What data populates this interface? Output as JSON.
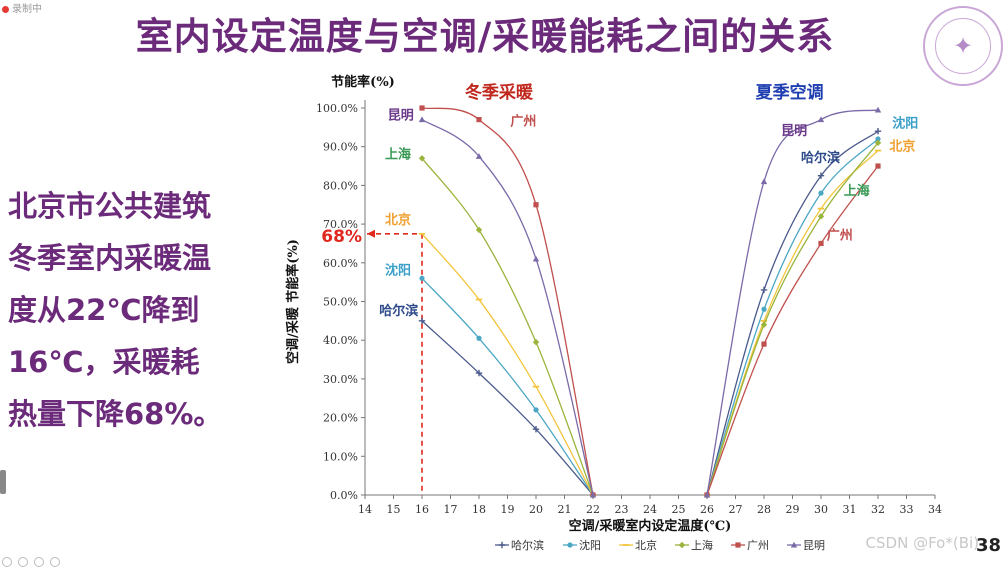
{
  "slide": {
    "title": "室内设定温度与空调/采暖能耗之间的关系",
    "recorder_label": "录制中",
    "side_text": [
      "北京市公共建筑",
      "冬季室内采暖温",
      "度从22℃降到",
      "16℃，采暖耗",
      "热量下降68%。"
    ],
    "page_number": "38",
    "watermark": "CSDN @Fo*(Bi)",
    "seal_icon": "university-seal-icon"
  },
  "chart_data": {
    "type": "line",
    "title": "",
    "xlabel": "空调/采暖室内设定温度(℃)",
    "ylabel": "空调/采暖 节能率(%)",
    "y_top_label": "节能率(%)",
    "xlim": [
      14,
      34
    ],
    "ylim": [
      0,
      100
    ],
    "x_ticks": [
      14,
      15,
      16,
      17,
      18,
      19,
      20,
      21,
      22,
      23,
      24,
      25,
      26,
      27,
      28,
      29,
      30,
      31,
      32,
      33,
      34
    ],
    "y_ticks": [
      0,
      10,
      20,
      30,
      40,
      50,
      60,
      70,
      80,
      90,
      100
    ],
    "y_tick_labels": [
      "0.0%",
      "10.0%",
      "20.0%",
      "30.0%",
      "40.0%",
      "50.0%",
      "60.0%",
      "70.0%",
      "80.0%",
      "90.0%",
      "100.0%"
    ],
    "winter_label": "冬季采暖",
    "summer_label": "夏季空调",
    "legend_position": "bottom",
    "highlight": {
      "label": "68%",
      "x": 16,
      "y": 67.5
    },
    "series": [
      {
        "name": "哈尔滨",
        "color": "#4a5a8c",
        "marker": "plus",
        "winter": [
          [
            16,
            45
          ],
          [
            18,
            31.5
          ],
          [
            20,
            17
          ],
          [
            22,
            0
          ]
        ],
        "summer": [
          [
            26,
            0
          ],
          [
            28,
            53
          ],
          [
            30,
            82.5
          ],
          [
            32,
            94
          ]
        ]
      },
      {
        "name": "沈阳",
        "color": "#4ba7c4",
        "marker": "dot",
        "winter": [
          [
            16,
            56
          ],
          [
            18,
            40.5
          ],
          [
            20,
            22
          ],
          [
            22,
            0
          ]
        ],
        "summer": [
          [
            26,
            0
          ],
          [
            28,
            48
          ],
          [
            30,
            78
          ],
          [
            32,
            92
          ]
        ]
      },
      {
        "name": "北京",
        "color": "#f2c53d",
        "marker": "dash",
        "winter": [
          [
            16,
            67.5
          ],
          [
            18,
            50.5
          ],
          [
            20,
            28
          ],
          [
            22,
            0
          ]
        ],
        "summer": [
          [
            26,
            0
          ],
          [
            28,
            45
          ],
          [
            30,
            74
          ],
          [
            32,
            89
          ]
        ]
      },
      {
        "name": "上海",
        "color": "#9ab43c",
        "marker": "diamond",
        "winter": [
          [
            16,
            87
          ],
          [
            18,
            68.5
          ],
          [
            20,
            39.5
          ],
          [
            22,
            0
          ]
        ],
        "summer": [
          [
            26,
            0
          ],
          [
            28,
            44
          ],
          [
            30,
            72
          ],
          [
            32,
            91
          ]
        ]
      },
      {
        "name": "广州",
        "color": "#c0504d",
        "marker": "square",
        "winter": [
          [
            16,
            100
          ],
          [
            18,
            97
          ],
          [
            20,
            75
          ],
          [
            22,
            0
          ]
        ],
        "summer": [
          [
            26,
            0
          ],
          [
            28,
            39
          ],
          [
            30,
            65
          ],
          [
            32,
            85
          ]
        ]
      },
      {
        "name": "昆明",
        "color": "#7b6aa8",
        "marker": "triangle",
        "winter": [
          [
            16,
            97
          ],
          [
            18,
            87.5
          ],
          [
            20,
            61
          ],
          [
            22,
            0
          ]
        ],
        "summer": [
          [
            26,
            0
          ],
          [
            28,
            81
          ],
          [
            30,
            97
          ],
          [
            32,
            99.5
          ]
        ]
      }
    ],
    "annotations": [
      {
        "text": "昆明",
        "color": "#6b3a8a",
        "x": 14.8,
        "y": 97
      },
      {
        "text": "广州",
        "color": "#c0504d",
        "x": 19.1,
        "y": 95.5
      },
      {
        "text": "上海",
        "color": "#3a9a56",
        "x": 14.7,
        "y": 87
      },
      {
        "text": "北京",
        "color": "#f0a030",
        "x": 14.7,
        "y": 70
      },
      {
        "text": "沈阳",
        "color": "#3aa0c8",
        "x": 14.7,
        "y": 57
      },
      {
        "text": "哈尔滨",
        "color": "#2d4a8a",
        "x": 14.5,
        "y": 46.5
      },
      {
        "text": "昆明",
        "color": "#6b3a8a",
        "x": 28.6,
        "y": 93
      },
      {
        "text": "哈尔滨",
        "color": "#2d4a8a",
        "x": 29.3,
        "y": 86
      },
      {
        "text": "沈阳",
        "color": "#3aa0c8",
        "x": 32.5,
        "y": 95
      },
      {
        "text": "北京",
        "color": "#f0a030",
        "x": 32.4,
        "y": 89
      },
      {
        "text": "上海",
        "color": "#3a9a56",
        "x": 30.8,
        "y": 77.5
      },
      {
        "text": "广州",
        "color": "#c0504d",
        "x": 30.2,
        "y": 66
      }
    ]
  }
}
